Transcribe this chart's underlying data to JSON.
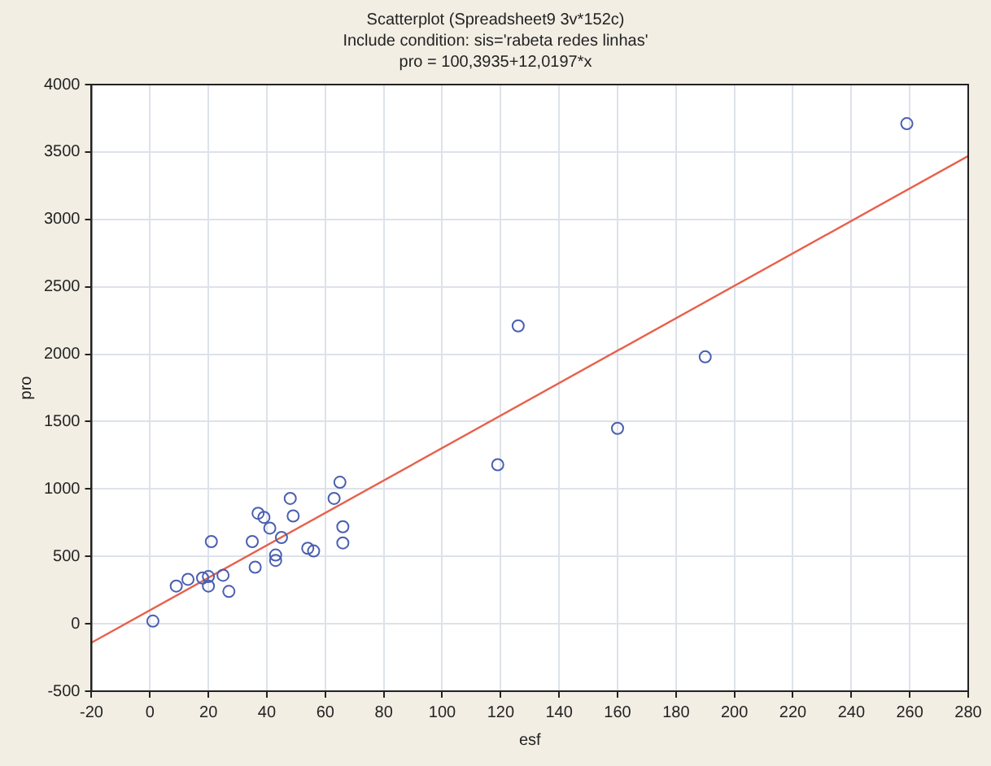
{
  "chart_data": {
    "type": "scatter",
    "title": "Scatterplot (Spreadsheet9 3v*152c)",
    "subtitle": "Include condition: sis='rabeta redes linhas'",
    "annotations": [
      "pro = 100,3935+12,0197*x"
    ],
    "xlabel": "esf",
    "ylabel": "pro",
    "xlim": [
      -20,
      280
    ],
    "xticks": [
      -20,
      0,
      20,
      40,
      60,
      80,
      100,
      120,
      140,
      160,
      180,
      200,
      220,
      240,
      260,
      280
    ],
    "ylim": [
      -500,
      4000
    ],
    "yticks": [
      -500,
      0,
      500,
      1000,
      1500,
      2000,
      2500,
      3000,
      3500,
      4000
    ],
    "grid": true,
    "series": [
      {
        "marker": "circle",
        "color": "#4a5fb0",
        "x": [
          1,
          9,
          13,
          18,
          20,
          20,
          21,
          25,
          27,
          35,
          36,
          37,
          39,
          41,
          43,
          43,
          45,
          48,
          49,
          54,
          56,
          63,
          65,
          66,
          66,
          119,
          126,
          160,
          190,
          259
        ],
        "values": [
          20,
          280,
          330,
          340,
          350,
          280,
          610,
          360,
          240,
          610,
          420,
          820,
          790,
          710,
          510,
          470,
          640,
          930,
          800,
          560,
          540,
          930,
          1050,
          720,
          600,
          1180,
          2210,
          1450,
          1980,
          3710
        ]
      },
      {
        "type": "line",
        "marker": "none",
        "color": "#e8604c",
        "x": [
          -20,
          280
        ],
        "values": [
          -140,
          3470
        ]
      }
    ]
  }
}
